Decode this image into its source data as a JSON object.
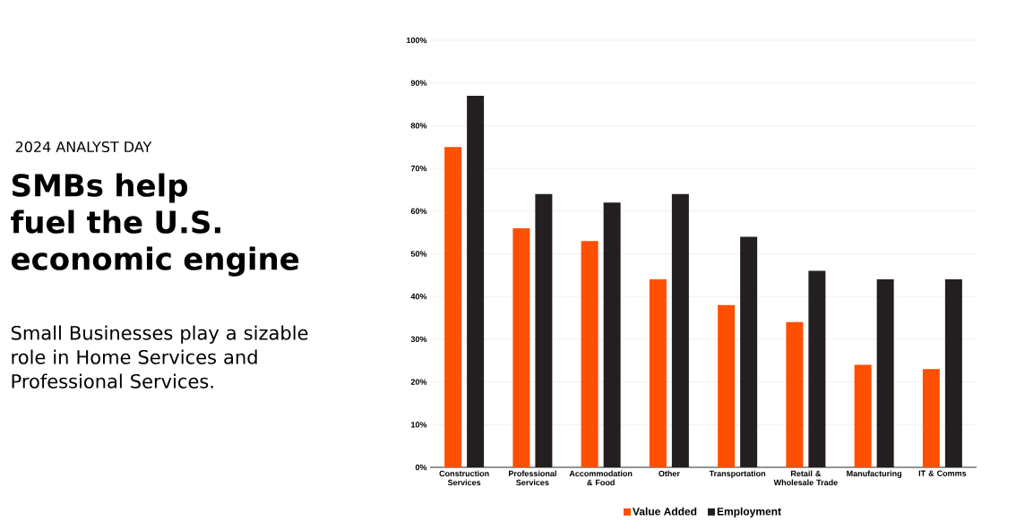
{
  "chart_data": {
    "type": "bar",
    "subtitle": "2024 ANALYST DAY",
    "title": "SMBs help fuel the U.S. economic engine",
    "annotations": [
      "Small Businesses play a sizable role in Home Services and Professional Services."
    ],
    "categories": [
      "Construction Services",
      "Professional Services",
      "Accommodation & Food",
      "Other",
      "Transportation",
      "Retail & Wholesale Trade",
      "Manufacturing",
      "IT & Comms"
    ],
    "series": [
      {
        "name": "Value Added",
        "color": "#ff4f00",
        "values": [
          75,
          56,
          53,
          44,
          38,
          34,
          24,
          23
        ]
      },
      {
        "name": "Employment",
        "color": "#231f20",
        "values": [
          87,
          64,
          62,
          64,
          54,
          46,
          44,
          44
        ]
      }
    ],
    "ylim": [
      0,
      100
    ],
    "yticks": [
      {
        "value": 0,
        "label": "0%"
      },
      {
        "value": 10,
        "label": "10%"
      },
      {
        "value": 20,
        "label": "20%"
      },
      {
        "value": 30,
        "label": "30%"
      },
      {
        "value": 40,
        "label": "40%"
      },
      {
        "value": 50,
        "label": "50%"
      },
      {
        "value": 60,
        "label": "60%"
      },
      {
        "value": 70,
        "label": "70%"
      },
      {
        "value": 80,
        "label": "80%"
      },
      {
        "value": 90,
        "label": "90%"
      },
      {
        "value": 100,
        "label": "100%"
      }
    ],
    "grid": "y",
    "legend": "bottom"
  }
}
